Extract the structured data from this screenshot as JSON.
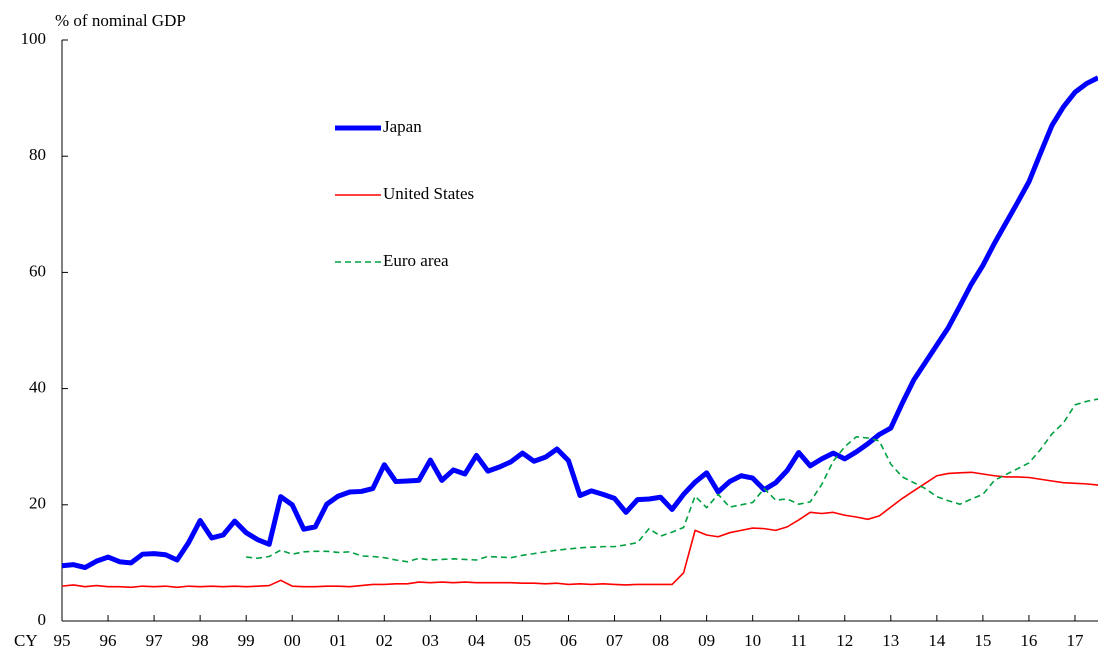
{
  "chart_data": {
    "type": "line",
    "ylabel": "% of nominal GDP",
    "xlabel": "CY",
    "xlim": [
      1995,
      2017.5
    ],
    "xticks": [
      {
        "value": 1995,
        "label": "95"
      },
      {
        "value": 1996,
        "label": "96"
      },
      {
        "value": 1997,
        "label": "97"
      },
      {
        "value": 1998,
        "label": "98"
      },
      {
        "value": 1999,
        "label": "99"
      },
      {
        "value": 2000,
        "label": "00"
      },
      {
        "value": 2001,
        "label": "01"
      },
      {
        "value": 2002,
        "label": "02"
      },
      {
        "value": 2003,
        "label": "03"
      },
      {
        "value": 2004,
        "label": "04"
      },
      {
        "value": 2005,
        "label": "05"
      },
      {
        "value": 2006,
        "label": "06"
      },
      {
        "value": 2007,
        "label": "07"
      },
      {
        "value": 2008,
        "label": "08"
      },
      {
        "value": 2009,
        "label": "09"
      },
      {
        "value": 2010,
        "label": "10"
      },
      {
        "value": 2011,
        "label": "11"
      },
      {
        "value": 2012,
        "label": "12"
      },
      {
        "value": 2013,
        "label": "13"
      },
      {
        "value": 2014,
        "label": "14"
      },
      {
        "value": 2015,
        "label": "15"
      },
      {
        "value": 2016,
        "label": "16"
      },
      {
        "value": 2017,
        "label": "17"
      }
    ],
    "ylim": [
      0,
      100
    ],
    "yticks": [
      0,
      20,
      40,
      60,
      80,
      100
    ],
    "legend": "upper-center",
    "x": [
      1995,
      1995.25,
      1995.5,
      1995.75,
      1996,
      1996.25,
      1996.5,
      1996.75,
      1997,
      1997.25,
      1997.5,
      1997.75,
      1998,
      1998.25,
      1998.5,
      1998.75,
      1999,
      1999.25,
      1999.5,
      1999.75,
      2000,
      2000.25,
      2000.5,
      2000.75,
      2001,
      2001.25,
      2001.5,
      2001.75,
      2002,
      2002.25,
      2002.5,
      2002.75,
      2003,
      2003.25,
      2003.5,
      2003.75,
      2004,
      2004.25,
      2004.5,
      2004.75,
      2005,
      2005.25,
      2005.5,
      2005.75,
      2006,
      2006.25,
      2006.5,
      2006.75,
      2007,
      2007.25,
      2007.5,
      2007.75,
      2008,
      2008.25,
      2008.5,
      2008.75,
      2009,
      2009.25,
      2009.5,
      2009.75,
      2010,
      2010.25,
      2010.5,
      2010.75,
      2011,
      2011.25,
      2011.5,
      2011.75,
      2012,
      2012.25,
      2012.5,
      2012.75,
      2013,
      2013.25,
      2013.5,
      2013.75,
      2014,
      2014.25,
      2014.5,
      2014.75,
      2015,
      2015.25,
      2015.5,
      2015.75,
      2016,
      2016.25,
      2016.5,
      2016.75,
      2017,
      2017.25,
      2017.5
    ],
    "series": [
      {
        "name": "Japan",
        "color": "#0000ff",
        "width": 5,
        "style": "solid",
        "values": [
          9.5,
          9.7,
          9.2,
          10.3,
          11,
          10.2,
          10,
          11.5,
          11.6,
          11.4,
          10.5,
          13.5,
          17.3,
          14.3,
          14.8,
          17.2,
          15.2,
          14,
          13.2,
          21.4,
          20,
          15.8,
          16.2,
          20.1,
          21.5,
          22.2,
          22.3,
          22.8,
          26.9,
          24,
          24.1,
          24.2,
          27.7,
          24.2,
          26,
          25.3,
          28.5,
          25.8,
          26.5,
          27.4,
          28.9,
          27.5,
          28.2,
          29.6,
          27.6,
          21.6,
          22.4,
          21.8,
          21.1,
          18.7,
          20.9,
          21,
          21.3,
          19.2,
          21.8,
          23.9,
          25.5,
          22.2,
          24,
          25,
          24.6,
          22.6,
          23.8,
          25.9,
          29,
          26.7,
          27.9,
          28.9,
          27.9,
          29.1,
          30.5,
          32.1,
          33.2,
          37.5,
          41.5,
          44.5,
          47.5,
          50.5,
          54.2,
          58,
          61.2,
          65,
          68.5,
          72,
          75.6,
          80.5,
          85.3,
          88.5,
          91,
          92.5,
          93.5
        ]
      },
      {
        "name": "United States",
        "color": "#ff0000",
        "width": 1.6,
        "style": "solid",
        "values": [
          6,
          6.2,
          5.9,
          6.1,
          5.9,
          5.9,
          5.8,
          6,
          5.9,
          6,
          5.8,
          6,
          5.9,
          6,
          5.9,
          6,
          5.9,
          6,
          6.1,
          7,
          6,
          5.9,
          5.9,
          6,
          6,
          5.9,
          6.1,
          6.3,
          6.3,
          6.4,
          6.4,
          6.7,
          6.6,
          6.7,
          6.6,
          6.7,
          6.6,
          6.6,
          6.6,
          6.6,
          6.5,
          6.5,
          6.4,
          6.5,
          6.3,
          6.4,
          6.3,
          6.4,
          6.3,
          6.2,
          6.3,
          6.3,
          6.3,
          6.3,
          8.3,
          15.6,
          14.8,
          14.5,
          15.2,
          15.6,
          16,
          15.9,
          15.6,
          16.2,
          17.4,
          18.7,
          18.5,
          18.7,
          18.2,
          17.9,
          17.5,
          18.1,
          19.6,
          21.1,
          22.4,
          23.7,
          25,
          25.4,
          25.5,
          25.6,
          25.3,
          25,
          24.8,
          24.8,
          24.7,
          24.4,
          24.1,
          23.8,
          23.7,
          23.6,
          23.4
        ]
      },
      {
        "name": "Euro area",
        "color": "#00a040",
        "width": 1.6,
        "style": "dashed",
        "values": [
          null,
          null,
          null,
          null,
          null,
          null,
          null,
          null,
          null,
          null,
          null,
          null,
          null,
          null,
          null,
          null,
          11,
          10.8,
          11.1,
          12.2,
          11.5,
          11.9,
          12,
          12,
          11.8,
          11.9,
          11.2,
          11.1,
          10.9,
          10.5,
          10.2,
          10.8,
          10.5,
          10.6,
          10.7,
          10.6,
          10.5,
          11.1,
          11,
          10.9,
          11.3,
          11.6,
          11.9,
          12.2,
          12.4,
          12.6,
          12.7,
          12.8,
          12.8,
          13.1,
          13.5,
          15.9,
          14.6,
          15.3,
          16.1,
          21.5,
          19.5,
          21.8,
          19.6,
          20,
          20.4,
          22.8,
          20.8,
          21,
          20.1,
          20.5,
          23.5,
          27.5,
          30,
          31.7,
          31.5,
          31,
          27,
          24.8,
          23.8,
          22.8,
          21.4,
          20.7,
          20.1,
          21,
          21.8,
          24.2,
          25.2,
          26.2,
          27.2,
          29.5,
          32.2,
          34.1,
          37.2,
          37.8,
          38.2
        ]
      }
    ]
  }
}
